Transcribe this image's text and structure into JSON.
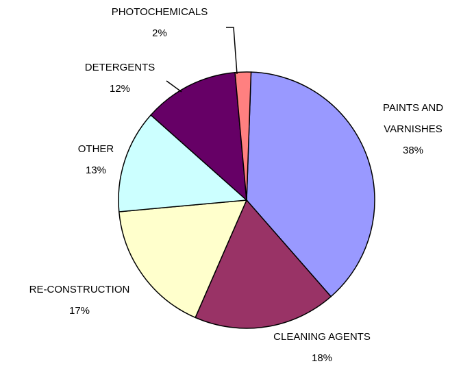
{
  "chart_data": {
    "type": "pie",
    "title": "",
    "slices": [
      {
        "label": "PAINTS AND VARNISHES",
        "label_lines": [
          "PAINTS AND",
          "VARNISHES"
        ],
        "value_text": "38%",
        "value": 38,
        "color": "#9999ff"
      },
      {
        "label": "CLEANING AGENTS",
        "label_lines": [
          "CLEANING AGENTS"
        ],
        "value_text": "18%",
        "value": 18,
        "color": "#993366"
      },
      {
        "label": "RE-CONSTRUCTION",
        "label_lines": [
          "RE-CONSTRUCTION"
        ],
        "value_text": "17%",
        "value": 17,
        "color": "#ffffcc"
      },
      {
        "label": "OTHER",
        "label_lines": [
          "OTHER"
        ],
        "value_text": "13%",
        "value": 13,
        "color": "#ccffff"
      },
      {
        "label": "DETERGENTS",
        "label_lines": [
          "DETERGENTS"
        ],
        "value_text": "12%",
        "value": 12,
        "color": "#660066"
      },
      {
        "label": "PHOTOCHEMICALS",
        "label_lines": [
          "PHOTOCHEMICALS"
        ],
        "value_text": "2%",
        "value": 2,
        "color": "#ff8080"
      }
    ],
    "legend": "none"
  }
}
